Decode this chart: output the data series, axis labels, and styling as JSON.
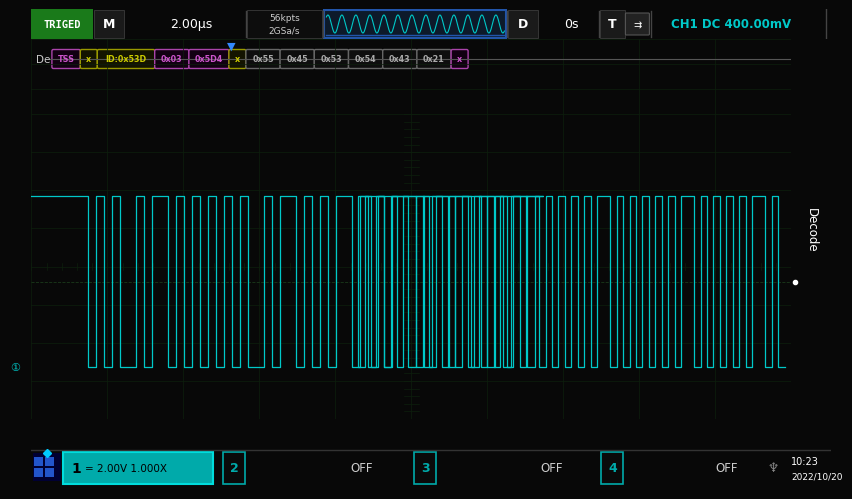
{
  "bg_color": "#080808",
  "screen_bg": "#050a05",
  "grid_color": "#0d1f0d",
  "waveform_color": "#00c8c8",
  "top_bar_color": "#111111",
  "bottom_bar_color": "#0a0a0a",
  "top_labels": {
    "triged": "TRIGED",
    "triged_bg": "#1a7a1a",
    "mode": "M",
    "timebase": "2.00μs",
    "memory1": "56kpts",
    "memory2": "2GSa/s",
    "trigger_type": "D",
    "trigger_pos": "0s",
    "trigger_label": "T",
    "ch_info": "CH1 DC 400.00mV",
    "ch_color": "#00c8c8"
  },
  "decode_labels": [
    {
      "text": "TSS",
      "color": "#cc55cc",
      "bg": "#120012",
      "border": "#aa44aa"
    },
    {
      "text": "x",
      "color": "#cccc00",
      "bg": "#141400",
      "border": "#999900"
    },
    {
      "text": "ID:0x53D",
      "color": "#cccc00",
      "bg": "#141400",
      "border": "#999900"
    },
    {
      "text": "0x03",
      "color": "#cc55cc",
      "bg": "#120012",
      "border": "#aa44aa"
    },
    {
      "text": "0x5D4",
      "color": "#cc55cc",
      "bg": "#120012",
      "border": "#aa44aa"
    },
    {
      "text": "x",
      "color": "#cccc00",
      "bg": "#141400",
      "border": "#999900"
    },
    {
      "text": "0x55",
      "color": "#aaaaaa",
      "bg": "#0e0e0e",
      "border": "#666666"
    },
    {
      "text": "0x45",
      "color": "#aaaaaa",
      "bg": "#0e0e0e",
      "border": "#666666"
    },
    {
      "text": "0x53",
      "color": "#aaaaaa",
      "bg": "#0e0e0e",
      "border": "#666666"
    },
    {
      "text": "0x54",
      "color": "#aaaaaa",
      "bg": "#0e0e0e",
      "border": "#666666"
    },
    {
      "text": "0x43",
      "color": "#aaaaaa",
      "bg": "#0e0e0e",
      "border": "#666666"
    },
    {
      "text": "0x21",
      "color": "#aaaaaa",
      "bg": "#0e0e0e",
      "border": "#666666"
    },
    {
      "text": "x",
      "color": "#cc55cc",
      "bg": "#120012",
      "border": "#aa44aa"
    }
  ],
  "bottom_labels": {
    "ch1_bg": "#00aaaa",
    "ch1_text": "1",
    "ch1_info": "= 2.00V 1.000X",
    "time": "10:23",
    "date": "2022/10/20"
  }
}
